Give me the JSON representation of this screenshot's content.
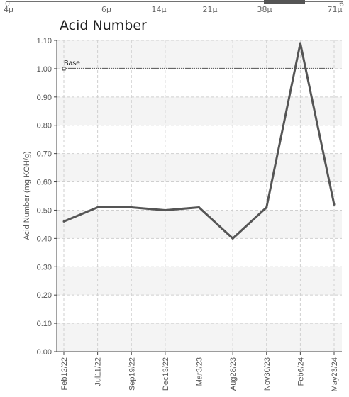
{
  "top_strip": {
    "labels": [
      "4μ",
      "6μ",
      "14μ",
      "21μ",
      "38μ",
      "71μ"
    ],
    "left_value": "0",
    "right_value": "6"
  },
  "chart_data": {
    "type": "line",
    "title": "Acid Number",
    "ylabel": "Acid Number (mg KOH/g)",
    "xlabel": "",
    "ylim": [
      0,
      1.1
    ],
    "yticks": [
      "0.00",
      "0.10",
      "0.20",
      "0.30",
      "0.40",
      "0.50",
      "0.60",
      "0.70",
      "0.80",
      "0.90",
      "1.00",
      "1.10"
    ],
    "categories": [
      "Feb12/22",
      "Jul11/22",
      "Sep19/22",
      "Dec13/22",
      "Mar3/23",
      "Aug28/23",
      "Nov30/23",
      "Feb6/24",
      "May23/24"
    ],
    "series": [
      {
        "values": [
          0.46,
          0.51,
          0.51,
          0.5,
          0.51,
          0.4,
          0.51,
          1.09,
          0.52
        ],
        "color": "#555555"
      }
    ],
    "reference_line": {
      "label": "Base",
      "value": 1.0,
      "color": "#666666"
    },
    "grid": true,
    "band_color": "#f4f4f4"
  }
}
